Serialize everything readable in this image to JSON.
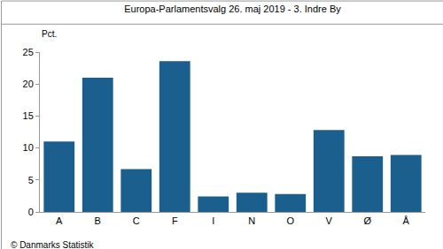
{
  "chart_data": {
    "type": "bar",
    "title": "Europa-Parlamentsvalg 26. maj 2019 - 3. Indre By",
    "y_label": "Pct.",
    "note": "© Danmarks Statistik",
    "categories": [
      "A",
      "B",
      "C",
      "F",
      "I",
      "N",
      "O",
      "V",
      "Ø",
      "Å"
    ],
    "values": [
      11.0,
      21.0,
      6.7,
      23.6,
      2.4,
      3.0,
      2.8,
      12.8,
      8.7,
      8.9
    ],
    "color": "#1b5f8e",
    "ylim": [
      0,
      25
    ],
    "yticks": [
      0,
      5,
      10,
      15,
      20,
      25
    ],
    "grid": false
  }
}
